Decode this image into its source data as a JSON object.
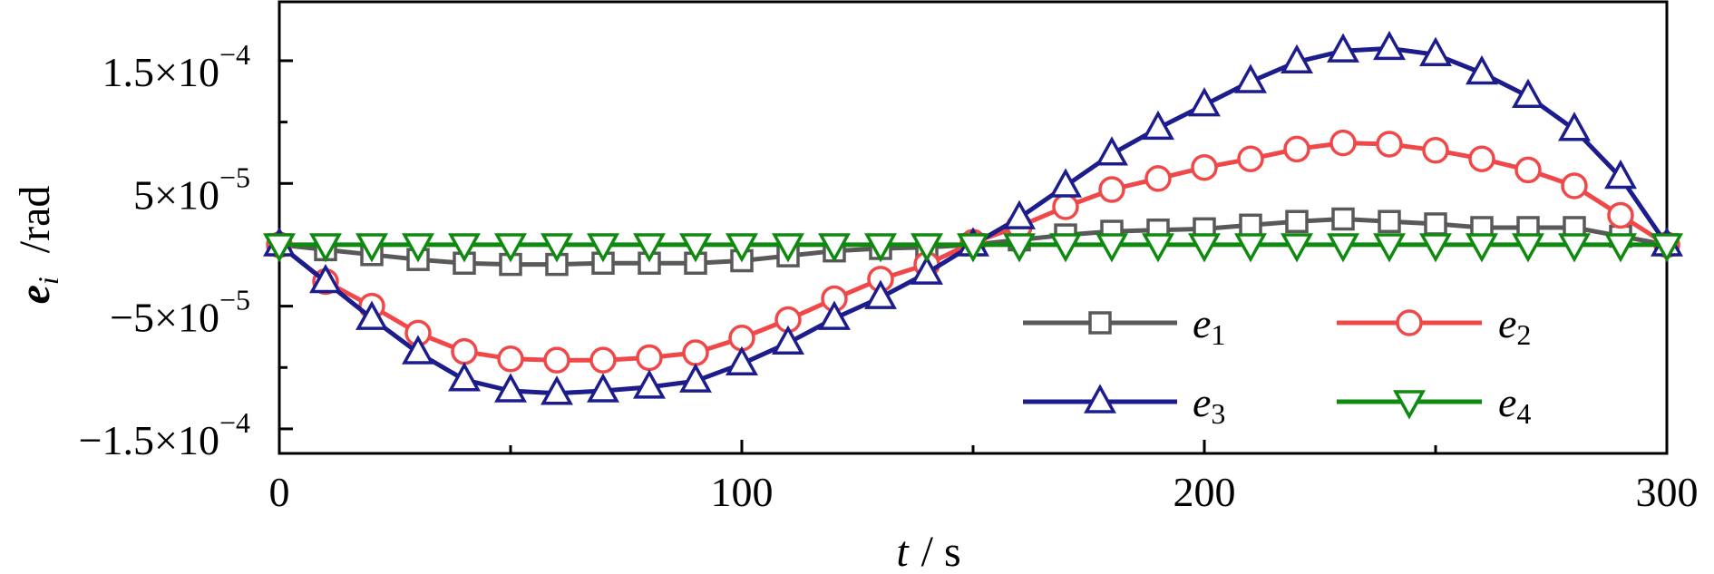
{
  "chart_data": {
    "type": "line",
    "xlabel": {
      "var": "t",
      "unit": "/ s"
    },
    "ylabel": {
      "var": "e",
      "sub": "i",
      "unit": "/rad"
    },
    "xlim": [
      0,
      300
    ],
    "ylim": [
      -0.00017,
      0.000198
    ],
    "grid": false,
    "legend_position": "bottom-right",
    "x_ticks": [
      {
        "value": 0,
        "label": "0"
      },
      {
        "value": 100,
        "label": "100"
      },
      {
        "value": 200,
        "label": "200"
      },
      {
        "value": 300,
        "label": "300"
      }
    ],
    "x_minor_ticks": [
      50,
      150,
      250
    ],
    "y_ticks": [
      {
        "value": 0.00015,
        "mant": "1.5×10",
        "exp": "−4"
      },
      {
        "value": 5e-05,
        "mant": "5×10",
        "exp": "−5"
      },
      {
        "value": -5e-05,
        "mant": "−5×10",
        "exp": "−5"
      },
      {
        "value": -0.00015,
        "mant": "−1.5×10",
        "exp": "−4"
      }
    ],
    "y_minor_ticks": [
      0.0001,
      0,
      -0.0001
    ],
    "x": [
      0,
      10,
      20,
      30,
      40,
      50,
      60,
      70,
      80,
      90,
      100,
      110,
      120,
      130,
      140,
      150,
      160,
      170,
      180,
      190,
      200,
      210,
      220,
      230,
      240,
      250,
      260,
      270,
      280,
      290,
      300
    ],
    "series": [
      {
        "name": "e",
        "sub": "1",
        "color": "#595959",
        "marker": "square",
        "values": [
          0,
          -4e-06,
          -8e-06,
          -1.2e-05,
          -1.5e-05,
          -1.6e-05,
          -1.6e-05,
          -1.5e-05,
          -1.5e-05,
          -1.5e-05,
          -1.3e-05,
          -9e-06,
          -5e-06,
          -3e-06,
          -2e-06,
          0,
          4e-06,
          8e-06,
          1.1e-05,
          1.2e-05,
          1.3e-05,
          1.6e-05,
          1.9e-05,
          2.1e-05,
          1.9e-05,
          1.7e-05,
          1.4e-05,
          1.4e-05,
          1.4e-05,
          7e-06,
          0
        ]
      },
      {
        "name": "e",
        "sub": "2",
        "color": "#f04848",
        "marker": "circle",
        "values": [
          0,
          -3e-05,
          -5e-05,
          -7.2e-05,
          -8.7e-05,
          -9.3e-05,
          -9.4e-05,
          -9.4e-05,
          -9.2e-05,
          -8.8e-05,
          -7.6e-05,
          -6.1e-05,
          -4.4e-05,
          -2.8e-05,
          -1.6e-05,
          2e-06,
          1.5e-05,
          3.1e-05,
          4.5e-05,
          5.4e-05,
          6.3e-05,
          7e-05,
          7.8e-05,
          8.3e-05,
          8.2e-05,
          7.7e-05,
          7e-05,
          6.1e-05,
          4.8e-05,
          2.4e-05,
          0
        ]
      },
      {
        "name": "e",
        "sub": "3",
        "color": "#1c1c8c",
        "marker": "triangle-up",
        "values": [
          0,
          -3e-05,
          -6e-05,
          -8.8e-05,
          -0.00011,
          -0.000119,
          -0.000121,
          -0.000119,
          -0.000116,
          -0.000111,
          -9.7e-05,
          -8e-05,
          -6e-05,
          -4.3e-05,
          -2.3e-05,
          0,
          2.2e-05,
          4.8e-05,
          7.4e-05,
          9.5e-05,
          0.000114,
          0.000133,
          0.000149,
          0.000158,
          0.00016,
          0.000155,
          0.00014,
          0.000121,
          9.4e-05,
          5.5e-05,
          0
        ]
      },
      {
        "name": "e",
        "sub": "4",
        "color": "#0e8a0e",
        "marker": "triangle-down",
        "values": [
          0,
          0,
          0,
          0,
          0,
          0,
          0,
          0,
          0,
          0,
          0,
          0,
          0,
          0,
          0,
          0,
          0,
          0,
          0,
          0,
          0,
          0,
          0,
          0,
          0,
          0,
          0,
          0,
          0,
          0,
          0
        ]
      }
    ]
  }
}
